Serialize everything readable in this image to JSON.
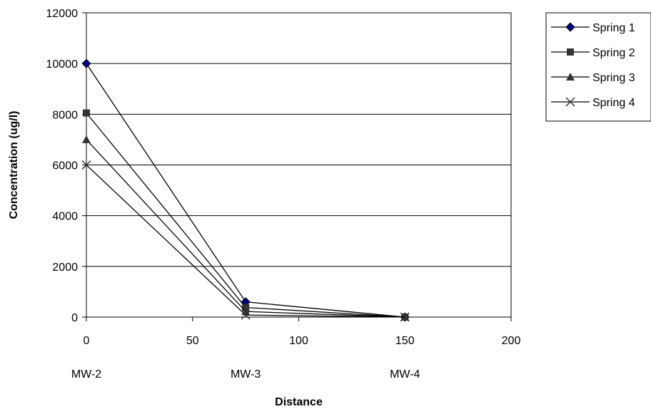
{
  "chart_data": {
    "type": "line",
    "title": "",
    "xlabel": "Distance",
    "ylabel": "Concentration (ug/l)",
    "xlim": [
      0,
      200
    ],
    "ylim": [
      0,
      12000
    ],
    "xticks": [
      0,
      50,
      100,
      150,
      200
    ],
    "yticks": [
      0,
      2000,
      4000,
      6000,
      8000,
      10000,
      12000
    ],
    "grid": "horizontal major gridlines",
    "legend_position": "right",
    "point_labels": [
      {
        "x": 0,
        "text": "MW-2"
      },
      {
        "x": 75,
        "text": "MW-3"
      },
      {
        "x": 150,
        "text": "MW-4"
      }
    ],
    "series": [
      {
        "name": "Spring 1",
        "marker": "diamond",
        "marker_color": "#000080",
        "line_color": "#000000",
        "x": [
          0,
          75,
          150
        ],
        "y": [
          10000,
          600,
          0
        ]
      },
      {
        "name": "Spring 2",
        "marker": "square",
        "marker_color": "#333333",
        "line_color": "#000000",
        "x": [
          0,
          75,
          150
        ],
        "y": [
          8050,
          380,
          0
        ]
      },
      {
        "name": "Spring 3",
        "marker": "triangle",
        "marker_color": "#333333",
        "line_color": "#000000",
        "x": [
          0,
          75,
          150
        ],
        "y": [
          7000,
          220,
          0
        ]
      },
      {
        "name": "Spring 4",
        "marker": "x",
        "marker_color": "#333333",
        "line_color": "#000000",
        "x": [
          0,
          75,
          150
        ],
        "y": [
          6000,
          80,
          0
        ]
      }
    ]
  }
}
